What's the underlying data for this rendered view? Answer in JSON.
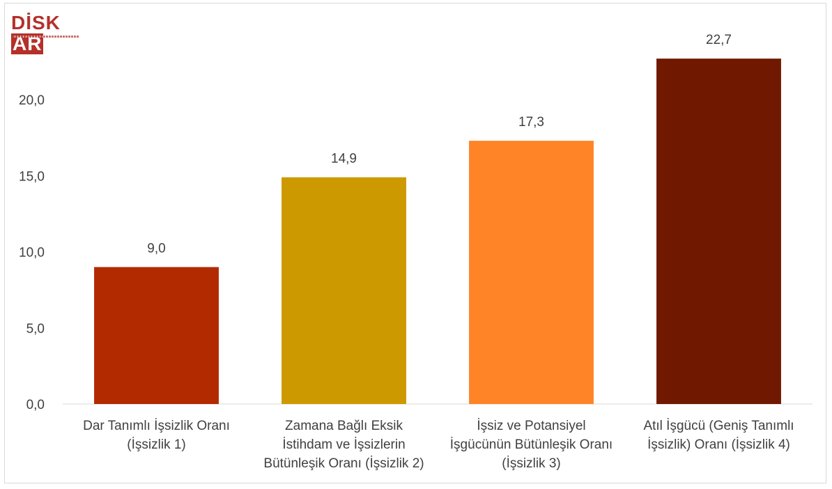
{
  "logo": {
    "text": "DİSK",
    "box_text": "AR"
  },
  "chart_data": {
    "type": "bar",
    "categories": [
      [
        "Dar Tanımlı İşsizlik Oranı",
        "(İşsizlik 1)"
      ],
      [
        "Zamana Bağlı Eksik",
        "İstihdam ve İşsizlerin",
        "Bütünleşik Oranı (İşsizlik 2)"
      ],
      [
        "İşsiz ve Potansiyel",
        "İşgücünün Bütünleşik Oranı",
        "(İşsizlik 3)"
      ],
      [
        "Atıl İşgücü (Geniş Tanımlı",
        "İşsizlik) Oranı (İşsizlik 4)"
      ]
    ],
    "values": [
      9.0,
      14.9,
      17.3,
      22.7
    ],
    "data_labels": [
      "9,0",
      "14,9",
      "17,3",
      "22,7"
    ],
    "colors": [
      "#b22a00",
      "#cc9900",
      "#ff8427",
      "#701900"
    ],
    "yticks": [
      0,
      5,
      10,
      15,
      20
    ],
    "ytick_labels": [
      "0,0",
      "5,0",
      "10,0",
      "15,0",
      "20,0"
    ],
    "ylim": [
      0,
      24.4
    ],
    "title": "",
    "xlabel": "",
    "ylabel": "",
    "grid": false,
    "legend": "none"
  }
}
